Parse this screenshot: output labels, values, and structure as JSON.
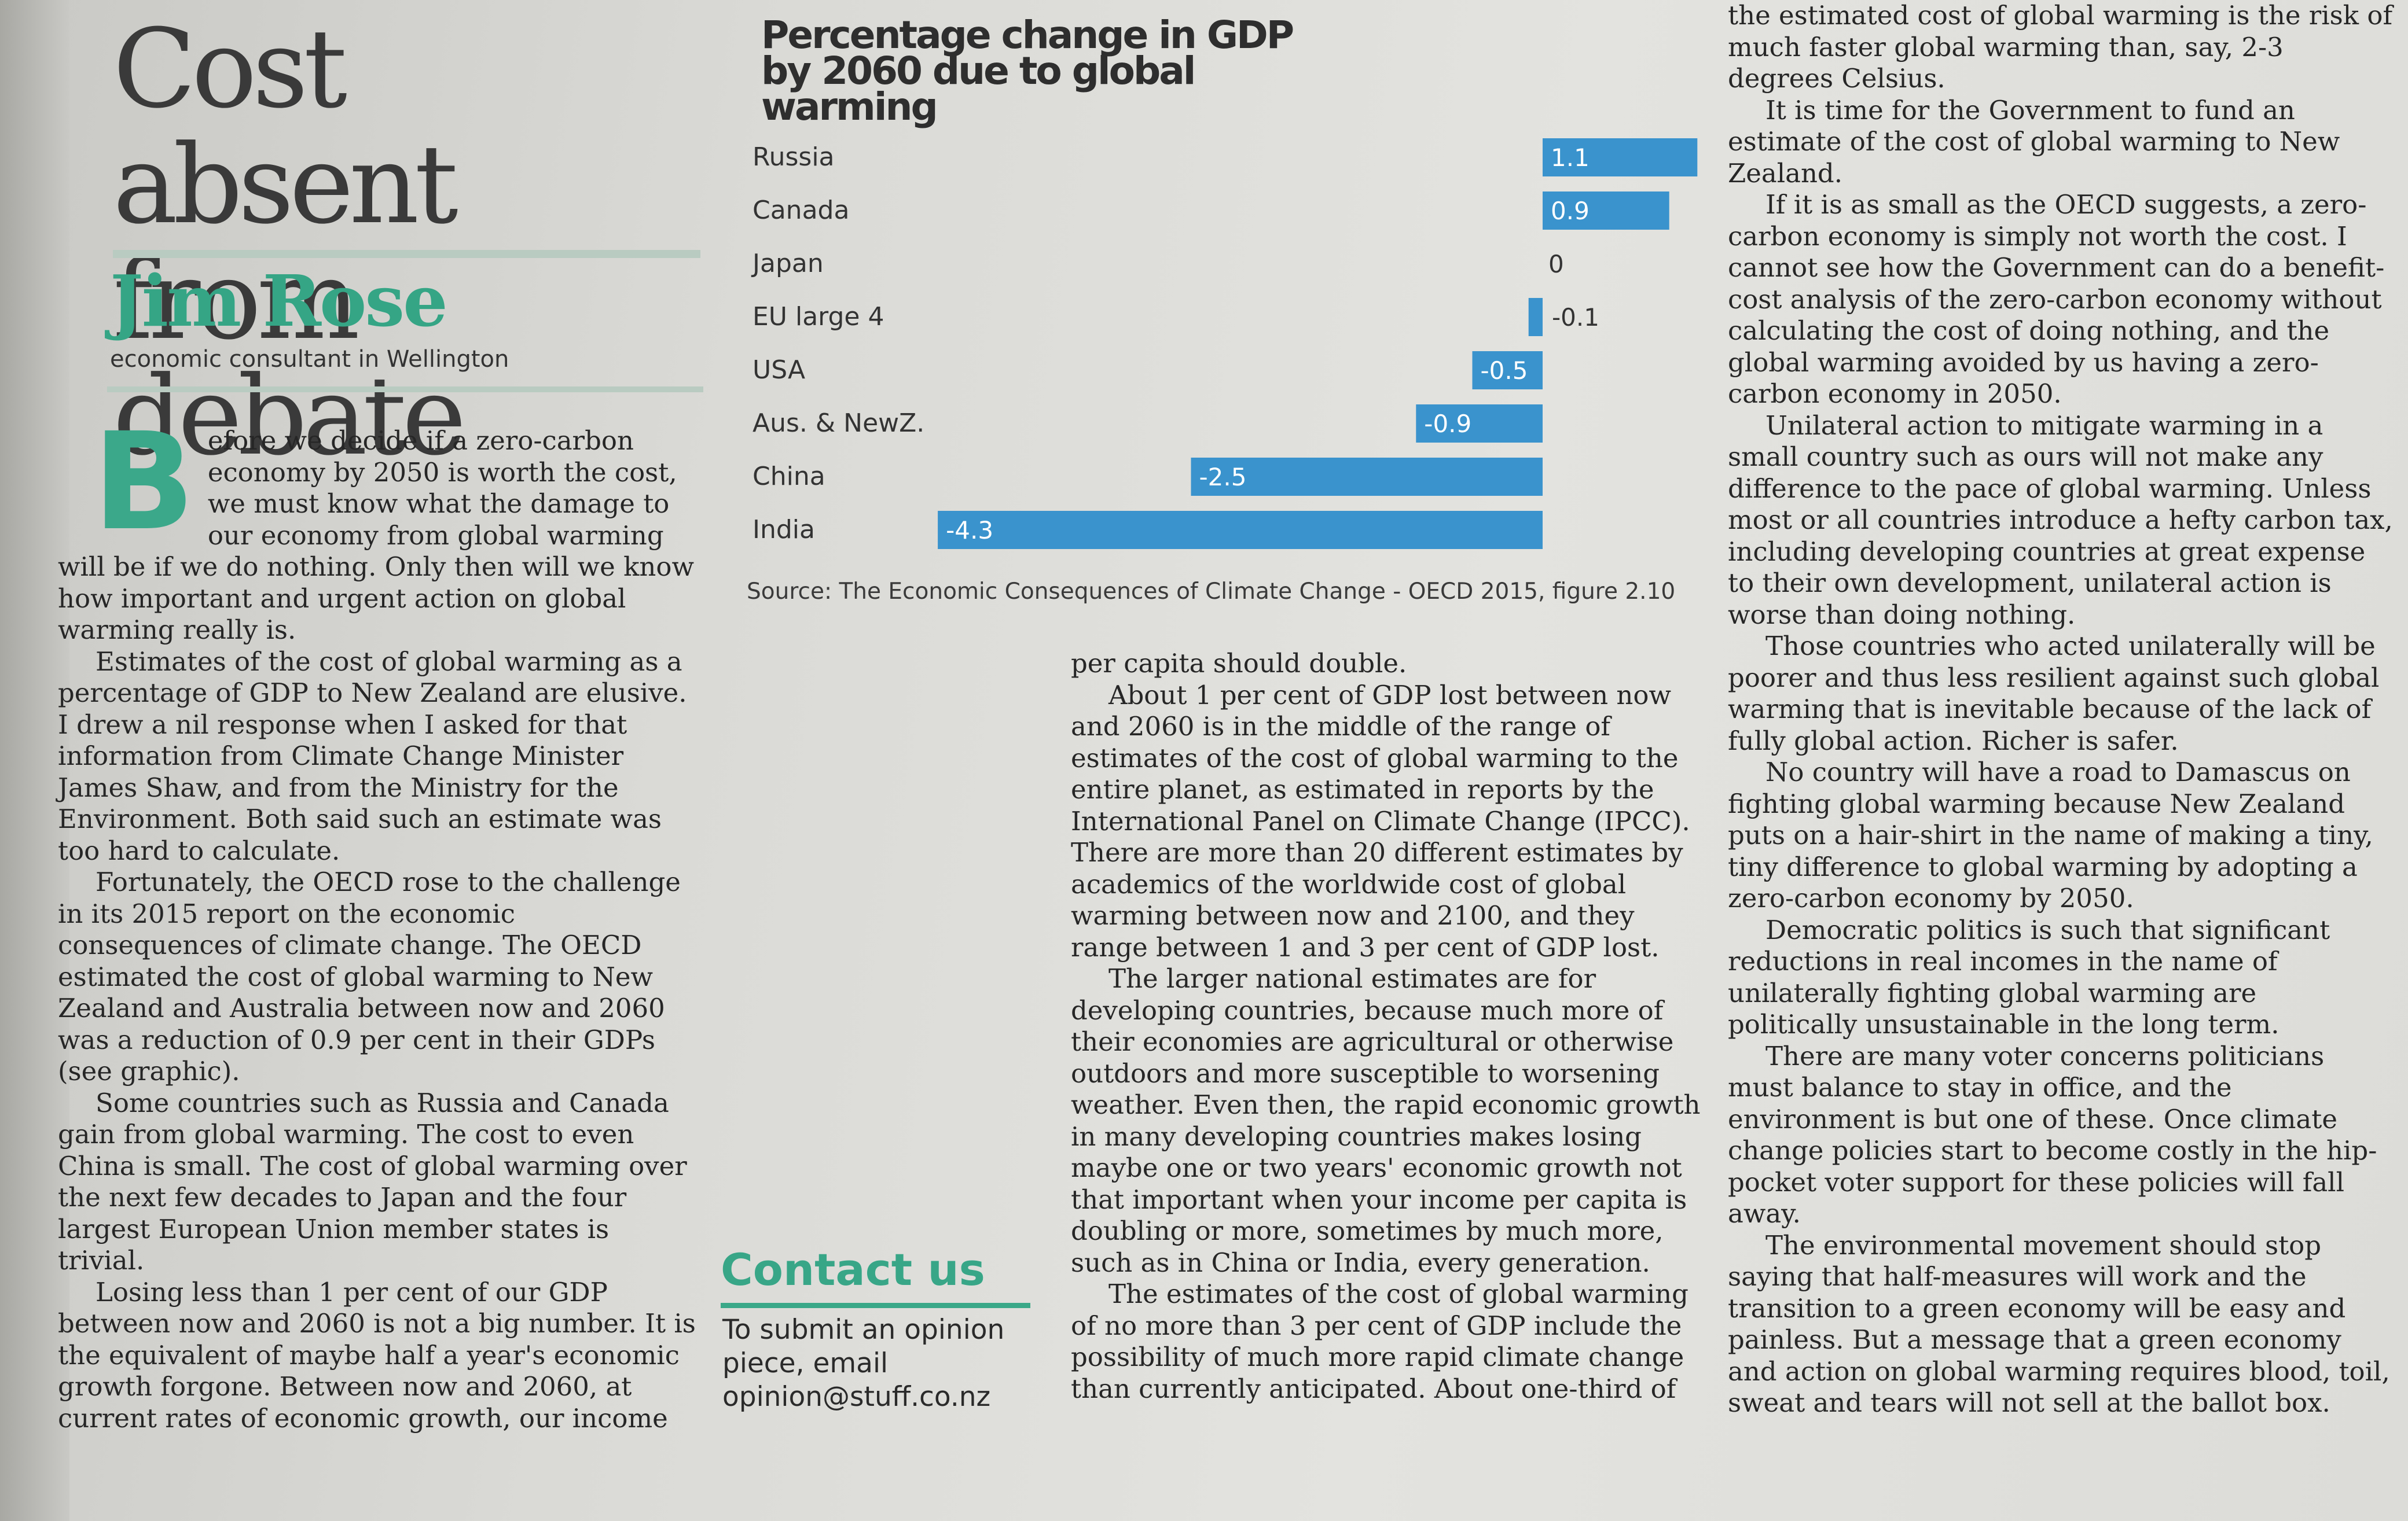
{
  "headline": [
    "Cost absent",
    "from debate"
  ],
  "author": {
    "name": "Jim Rose",
    "role": "economic consultant in Wellington"
  },
  "col1": {
    "dropcap": "B",
    "paragraphs": [
      "efore we decide if a zero-carbon economy by 2050 is worth the cost, we must know what the damage to our economy from global warming will be if we do nothing. Only then will we know how important and urgent action on global warming really is.",
      "Estimates of the cost of global warming as a percentage of GDP to New Zealand are elusive. I drew a nil response when I asked for that information from Climate Change Minister James Shaw, and from the Ministry for the Environment. Both said such an estimate was too hard to calculate.",
      "Fortunately, the OECD rose to the challenge in its 2015 report on the economic consequences of climate change. The OECD estimated the cost of global warming to New Zealand and Australia between now and 2060 was a reduction of 0.9 per cent in their GDPs (see graphic).",
      "Some countries such as Russia and Canada gain from global warming. The cost to even China is small. The cost of global warming over the next few decades to Japan and the four largest European Union member states is trivial.",
      "Losing less than 1 per cent of our GDP between now and 2060 is not a big number. It is the equivalent of maybe half a year's economic growth forgone. Between now and 2060, at current rates of economic growth, our income"
    ]
  },
  "col2": {
    "paragraphs": [
      "per capita should double.",
      "About 1 per cent of GDP lost between now and 2060 is in the middle of the range of estimates of the cost of global warming to the entire planet, as estimated in reports by the International Panel on Climate Change (IPCC). There are more than 20 different estimates by academics of the worldwide cost of global warming between now and 2100, and they range between 1 and 3 per cent of GDP lost.",
      "The larger national estimates are for developing countries, because much more of their economies are agricultural or otherwise outdoors and more susceptible to worsening weather. Even then, the rapid economic growth in many developing countries makes losing maybe one or two years' economic growth not that important when your income per capita is doubling or more, sometimes by much more, such as in China or India, every generation.",
      "The estimates of the cost of global warming of no more than 3 per cent of GDP include the possibility of much more rapid climate change than currently anticipated. About one-third of"
    ]
  },
  "col3": {
    "paragraphs": [
      "the estimated cost of global warming is the risk of much faster global warming than, say, 2-3 degrees Celsius.",
      "It is time for the Government to fund an estimate of the cost of global warming to New Zealand.",
      "If it is as small as the OECD suggests, a zero-carbon economy is simply not worth the cost. I cannot see how the Government can do a benefit-cost analysis of the zero-carbon economy without calculating the cost of doing nothing, and the global warming avoided by us having a zero-carbon economy in 2050.",
      "Unilateral action to mitigate warming in a small country such as ours will not make any difference to the pace of global warming. Unless most or all countries introduce a hefty carbon tax, including developing countries at great expense to their own development, unilateral action is worse than doing nothing.",
      "Those countries who acted unilaterally will be poorer and thus less resilient against such global warming that is inevitable because of the lack of fully global action. Richer is safer.",
      "No country will have a road to Damascus on fighting global warming because New Zealand puts on a hair-shirt in the name of making a tiny, tiny difference to global warming by adopting a zero-carbon economy by 2050.",
      "Democratic politics is such that significant reductions in real incomes in the name of unilaterally fighting global warming are politically unsustainable in the long term.",
      "There are many voter concerns politicians must balance to stay in office, and the environment is but one of these. Once climate change policies start to become costly in the hip-pocket voter support for these policies will fall away.",
      "The environmental movement should stop saying that half-measures will work and the transition to a green economy will be easy and painless. But a message that a green economy and action on global warming requires blood, toil, sweat and tears will not sell at the ballot box."
    ]
  },
  "chart_data": {
    "type": "bar",
    "orientation": "horizontal",
    "title": "Percentage change in GDP by 2060 due to global warming",
    "categories": [
      "Russia",
      "Canada",
      "Japan",
      "EU large 4",
      "USA",
      "Aus. & NewZ.",
      "China",
      "India"
    ],
    "values": [
      1.1,
      0.9,
      0,
      -0.1,
      -0.5,
      -0.9,
      -2.5,
      -4.3
    ],
    "labels": [
      "1.1",
      "0.9",
      "0",
      "-0.1",
      "-0.5",
      "-0.9",
      "-2.5",
      "-4.3"
    ],
    "source": "Source: The Economic Consequences of Climate Change - OECD 2015, figure 2.10",
    "bar_color": "#3a93cd",
    "xlim": [
      -4.3,
      1.1
    ]
  },
  "contact": {
    "title": "Contact us",
    "lines": [
      "To submit an opinion",
      "piece, email",
      "opinion@stuff.co.nz"
    ]
  }
}
